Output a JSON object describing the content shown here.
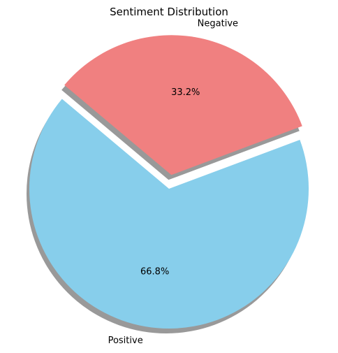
{
  "chart_data": {
    "type": "pie",
    "title": "Sentiment Distribution",
    "categories": [
      "Positive",
      "Negative"
    ],
    "values": [
      66.8,
      33.2
    ],
    "percent_labels": [
      "66.8%",
      "33.2%"
    ],
    "colors": [
      "#87ceeb",
      "#f08080"
    ],
    "exploded": [
      "Negative"
    ],
    "shadow": true
  }
}
